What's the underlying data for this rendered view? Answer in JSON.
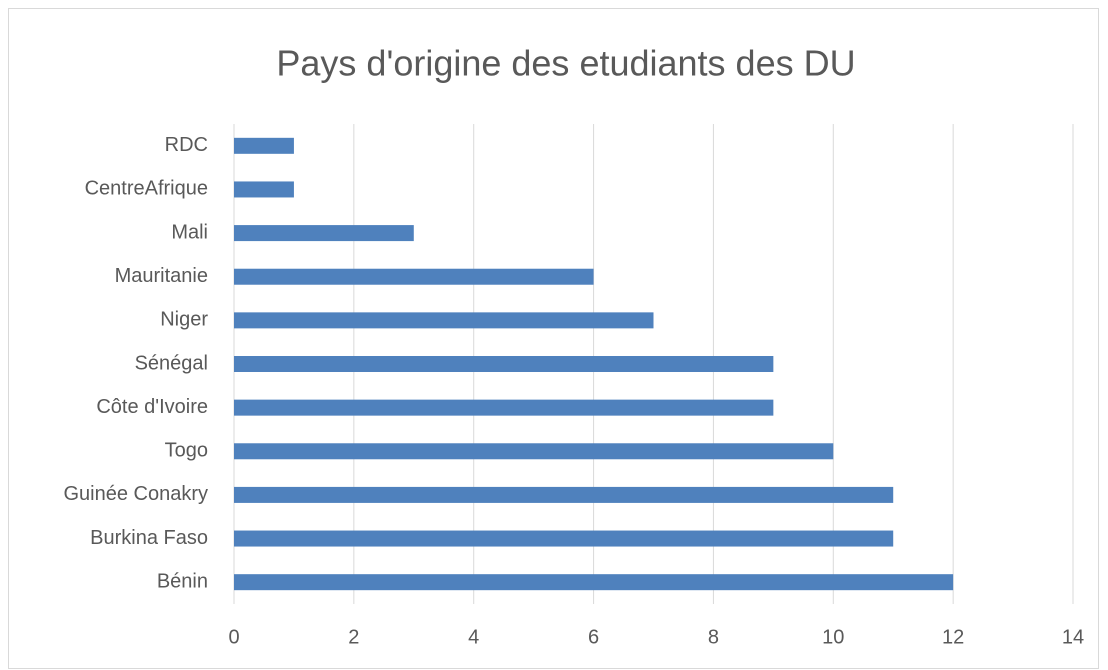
{
  "chart_data": {
    "type": "bar",
    "orientation": "horizontal",
    "title": "Pays d'origine des etudiants des DU",
    "categories": [
      "Bénin",
      "Burkina Faso",
      "Guinée Conakry",
      "Togo",
      "Côte d'Ivoire",
      "Sénégal",
      "Niger",
      "Mauritanie",
      "Mali",
      "CentreAfrique",
      "RDC"
    ],
    "values": [
      12,
      11,
      11,
      10,
      9,
      9,
      7,
      6,
      3,
      1,
      1
    ],
    "color": "#4f81bd",
    "xlim": [
      0,
      14
    ],
    "xticks": [
      0,
      2,
      4,
      6,
      8,
      10,
      12,
      14
    ],
    "grid": true
  }
}
